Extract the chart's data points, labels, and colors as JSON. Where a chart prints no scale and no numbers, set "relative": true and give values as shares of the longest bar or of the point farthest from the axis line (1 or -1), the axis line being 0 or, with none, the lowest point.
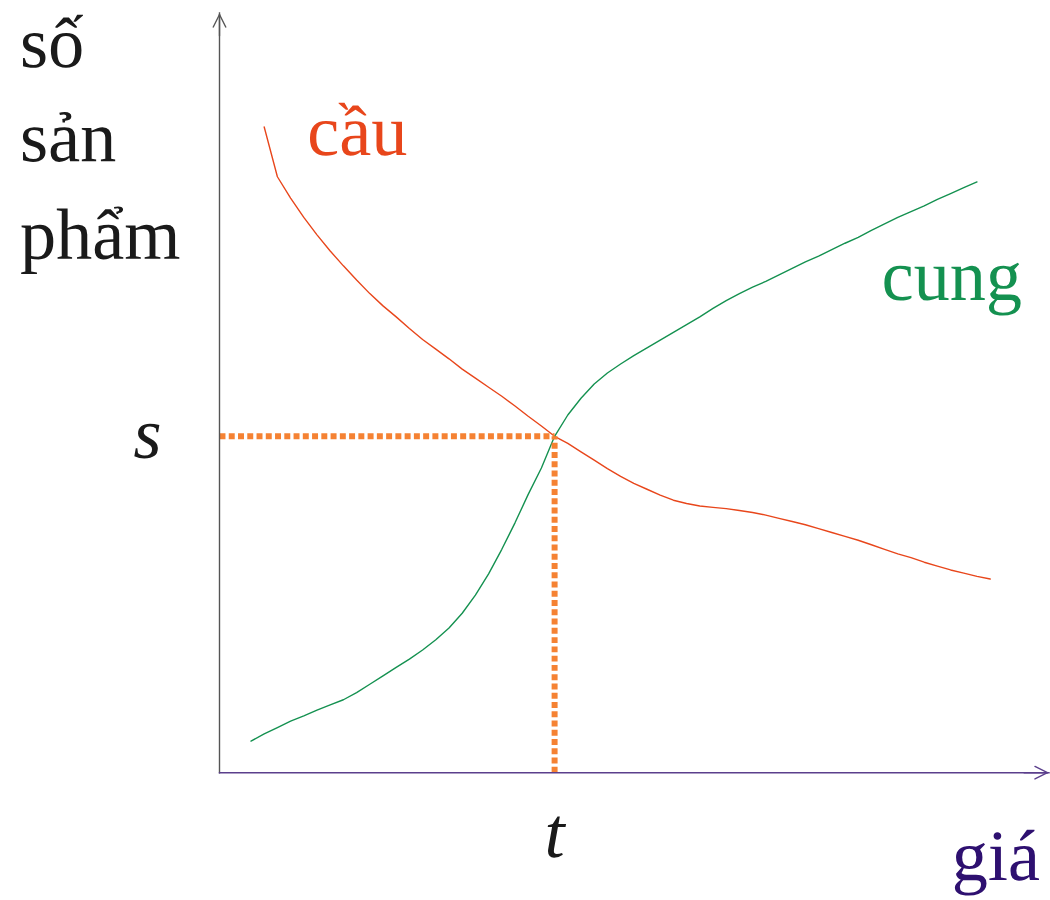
{
  "chart_data": {
    "type": "line",
    "relative": true,
    "xlabel": "giá",
    "ylabel": "số sản phẩm",
    "annotations": [
      "t"
    ],
    "categories": [
      null,
      null,
      null,
      null,
      null,
      null,
      null,
      null,
      null,
      null,
      null,
      null,
      null,
      null,
      null,
      null,
      null,
      null,
      null,
      null,
      null,
      null,
      null,
      null,
      null,
      null,
      null,
      null,
      null,
      null,
      null,
      null,
      null,
      null,
      null,
      null,
      null,
      null,
      null,
      null,
      null,
      null,
      null,
      null,
      null,
      null,
      null,
      null,
      null,
      null,
      null,
      null,
      null,
      null,
      null,
      null,
      null
    ],
    "series": [
      {
        "name": "cầu",
        "color": "#e8461b",
        "values": [
          null,
          1.0,
          0.923,
          0.89,
          0.86,
          0.833,
          0.808,
          0.785,
          0.763,
          0.742,
          0.723,
          0.706,
          0.688,
          0.671,
          0.656,
          0.641,
          0.625,
          0.611,
          0.597,
          0.583,
          0.568,
          0.552,
          0.537,
          0.521,
          0.51,
          0.497,
          0.484,
          0.471,
          0.459,
          0.448,
          0.439,
          0.43,
          0.422,
          0.417,
          0.413,
          0.411,
          0.409,
          0.406,
          0.403,
          0.399,
          0.394,
          0.389,
          0.384,
          0.378,
          0.372,
          0.366,
          0.36,
          0.353,
          0.346,
          0.339,
          0.333,
          0.326,
          0.32,
          0.314,
          0.309,
          0.304,
          0.3
        ]
      },
      {
        "name": "cung",
        "color": "#149150",
        "values": [
          0.049,
          0.06,
          0.07,
          0.08,
          0.088,
          0.097,
          0.105,
          0.113,
          0.124,
          0.137,
          0.15,
          0.163,
          0.176,
          0.19,
          0.206,
          0.224,
          0.247,
          0.275,
          0.308,
          0.346,
          0.387,
          0.431,
          0.472,
          0.521,
          0.554,
          0.58,
          0.602,
          0.619,
          0.633,
          0.646,
          0.658,
          0.67,
          0.682,
          0.694,
          0.706,
          0.719,
          0.731,
          0.742,
          0.752,
          0.761,
          0.771,
          0.781,
          0.791,
          0.8,
          0.81,
          0.82,
          0.829,
          0.84,
          0.85,
          0.86,
          0.869,
          0.878,
          0.888,
          0.897,
          0.906,
          0.915,
          null
        ]
      }
    ],
    "ref_lines": [
      {
        "axis": "y",
        "value": 0.521,
        "label": "s",
        "color": "#f58233",
        "line_style": "dotted"
      }
    ]
  }
}
